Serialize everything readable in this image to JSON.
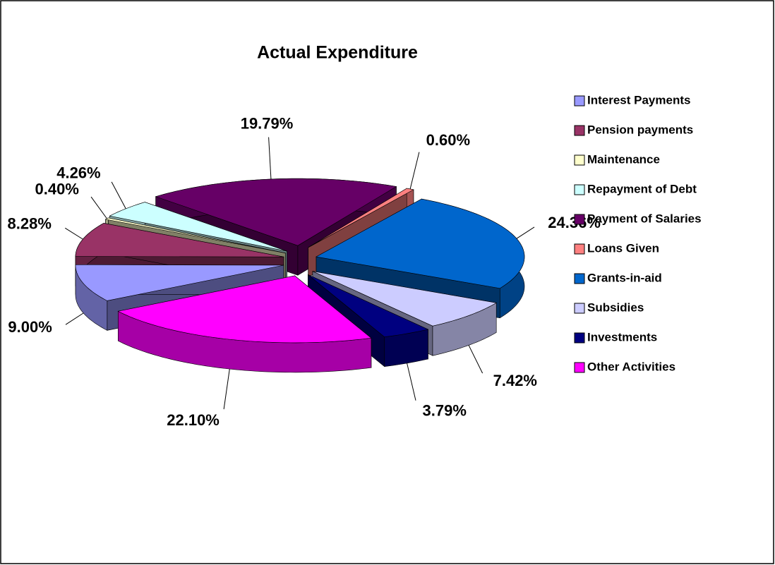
{
  "chart_data": {
    "type": "pie",
    "title": "Actual Expenditure",
    "categories": [
      "Interest Payments",
      "Pension payments",
      "Maintenance",
      "Repayment of Debt",
      "Payment of Salaries",
      "Loans Given",
      "Grants-in-aid",
      "Subsidies",
      "Investments",
      "Other Activities"
    ],
    "values": [
      9.0,
      8.28,
      0.4,
      4.26,
      19.79,
      0.6,
      24.36,
      7.42,
      3.79,
      22.1
    ],
    "value_labels": [
      "9.00%",
      "8.28%",
      "0.40%",
      "4.26%",
      "19.79%",
      "0.60%",
      "24.36%",
      "7.42%",
      "3.79%",
      "22.10%"
    ],
    "colors": [
      "#9999ff",
      "#993366",
      "#ffffcc",
      "#ccffff",
      "#660066",
      "#ff8080",
      "#0066cc",
      "#ccccff",
      "#000080",
      "#ff00ff"
    ],
    "legend": "right"
  }
}
